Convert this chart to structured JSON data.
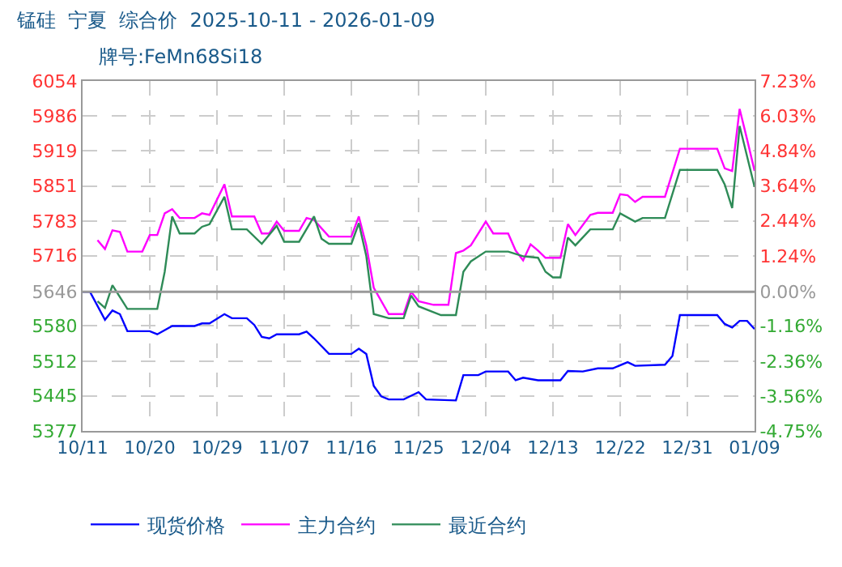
{
  "chart_data": {
    "type": "line",
    "title": "锰硅  宁夏  综合价  2025-10-11 - 2026-01-09",
    "subtitle": "牌号:FeMn68Si18",
    "series": [
      {
        "name": "现货价格",
        "color": "#0000ff",
        "x": [
          "2025-10-11",
          "2025-10-12",
          "2025-10-14",
          "2025-10-15",
          "2025-10-16",
          "2025-10-17",
          "2025-10-20",
          "2025-10-21",
          "2025-10-23",
          "2025-10-26",
          "2025-10-27",
          "2025-10-28",
          "2025-10-30",
          "2025-10-31",
          "2025-11-02",
          "2025-11-03",
          "2025-11-04",
          "2025-11-05",
          "2025-11-06",
          "2025-11-09",
          "2025-11-10",
          "2025-11-11",
          "2025-11-13",
          "2025-11-16",
          "2025-11-17",
          "2025-11-18",
          "2025-11-19",
          "2025-11-20",
          "2025-11-21",
          "2025-11-23",
          "2025-11-25",
          "2025-11-26",
          "2025-11-30",
          "2025-12-01",
          "2025-12-03",
          "2025-12-04",
          "2025-12-07",
          "2025-12-08",
          "2025-12-09",
          "2025-12-11",
          "2025-12-14",
          "2025-12-15",
          "2025-12-17",
          "2025-12-19",
          "2025-12-21",
          "2025-12-23",
          "2025-12-24",
          "2025-12-28",
          "2025-12-29",
          "2025-12-30",
          "2026-01-04",
          "2026-01-05",
          "2026-01-06",
          "2026-01-07",
          "2026-01-08",
          "2026-01-09"
        ],
        "values": [
          5646,
          5646,
          5592,
          5610,
          5603,
          5570,
          5570,
          5564,
          5580,
          5580,
          5585,
          5585,
          5603,
          5595,
          5595,
          5582,
          5559,
          5556,
          5564,
          5564,
          5569,
          5556,
          5526,
          5526,
          5536,
          5526,
          5464,
          5444,
          5438,
          5438,
          5452,
          5438,
          5436,
          5485,
          5485,
          5492,
          5492,
          5475,
          5480,
          5475,
          5475,
          5493,
          5492,
          5498,
          5498,
          5510,
          5503,
          5505,
          5522,
          5601,
          5601,
          5584,
          5577,
          5590,
          5590,
          5574
        ]
      },
      {
        "name": "主力合约",
        "color": "#ff00ff",
        "x": [
          "2025-10-13",
          "2025-10-14",
          "2025-10-15",
          "2025-10-16",
          "2025-10-17",
          "2025-10-19",
          "2025-10-20",
          "2025-10-21",
          "2025-10-22",
          "2025-10-23",
          "2025-10-24",
          "2025-10-26",
          "2025-10-27",
          "2025-10-28",
          "2025-10-30",
          "2025-10-31",
          "2025-11-03",
          "2025-11-04",
          "2025-11-05",
          "2025-11-06",
          "2025-11-07",
          "2025-11-09",
          "2025-11-10",
          "2025-11-11",
          "2025-11-13",
          "2025-11-16",
          "2025-11-17",
          "2025-11-18",
          "2025-11-19",
          "2025-11-21",
          "2025-11-23",
          "2025-11-24",
          "2025-11-25",
          "2025-11-27",
          "2025-11-29",
          "2025-11-30",
          "2025-12-01",
          "2025-12-02",
          "2025-12-04",
          "2025-12-05",
          "2025-12-07",
          "2025-12-08",
          "2025-12-09",
          "2025-12-10",
          "2025-12-11",
          "2025-12-12",
          "2025-12-14",
          "2025-12-15",
          "2025-12-16",
          "2025-12-18",
          "2025-12-19",
          "2025-12-21",
          "2025-12-22",
          "2025-12-23",
          "2025-12-24",
          "2025-12-25",
          "2025-12-28",
          "2025-12-30",
          "2026-01-04",
          "2026-01-05",
          "2026-01-06",
          "2026-01-07",
          "2026-01-08",
          "2026-01-09"
        ],
        "values": [
          5746,
          5729,
          5765,
          5762,
          5724,
          5724,
          5756,
          5756,
          5798,
          5806,
          5789,
          5789,
          5798,
          5795,
          5854,
          5792,
          5792,
          5759,
          5759,
          5782,
          5764,
          5764,
          5789,
          5785,
          5753,
          5753,
          5792,
          5736,
          5654,
          5603,
          5603,
          5646,
          5628,
          5621,
          5621,
          5721,
          5726,
          5736,
          5782,
          5759,
          5759,
          5726,
          5707,
          5738,
          5726,
          5712,
          5712,
          5777,
          5756,
          5795,
          5799,
          5799,
          5835,
          5833,
          5820,
          5830,
          5830,
          5923,
          5923,
          5885,
          5880,
          6000,
          5941,
          5880
        ]
      },
      {
        "name": "最近合约",
        "color": "#2e8b57",
        "x": [
          "2025-10-13",
          "2025-10-14",
          "2025-10-15",
          "2025-10-17",
          "2025-10-21",
          "2025-10-22",
          "2025-10-23",
          "2025-10-24",
          "2025-10-26",
          "2025-10-27",
          "2025-10-28",
          "2025-10-30",
          "2025-10-31",
          "2025-11-02",
          "2025-11-04",
          "2025-11-06",
          "2025-11-07",
          "2025-11-09",
          "2025-11-11",
          "2025-11-12",
          "2025-11-13",
          "2025-11-16",
          "2025-11-17",
          "2025-11-18",
          "2025-11-19",
          "2025-11-21",
          "2025-11-23",
          "2025-11-24",
          "2025-11-25",
          "2025-11-28",
          "2025-11-30",
          "2025-12-01",
          "2025-12-02",
          "2025-12-04",
          "2025-12-07",
          "2025-12-09",
          "2025-12-11",
          "2025-12-12",
          "2025-12-13",
          "2025-12-14",
          "2025-12-15",
          "2025-12-16",
          "2025-12-18",
          "2025-12-21",
          "2025-12-22",
          "2025-12-24",
          "2025-12-25",
          "2025-12-28",
          "2025-12-30",
          "2026-01-04",
          "2026-01-05",
          "2026-01-06",
          "2026-01-07",
          "2026-01-09"
        ],
        "values": [
          5628,
          5615,
          5659,
          5613,
          5613,
          5685,
          5792,
          5759,
          5759,
          5772,
          5777,
          5830,
          5767,
          5767,
          5739,
          5774,
          5743,
          5743,
          5792,
          5749,
          5739,
          5739,
          5779,
          5715,
          5603,
          5595,
          5595,
          5639,
          5618,
          5601,
          5601,
          5685,
          5705,
          5724,
          5724,
          5715,
          5712,
          5685,
          5674,
          5674,
          5751,
          5736,
          5767,
          5767,
          5798,
          5782,
          5789,
          5789,
          5882,
          5882,
          5854,
          5808,
          5967,
          5849
        ]
      }
    ],
    "xlim": [
      "2025-10-11",
      "2026-01-09"
    ],
    "xticks": [
      {
        "value": "2025-10-11",
        "label": "10/11"
      },
      {
        "value": "2025-10-20",
        "label": "10/20"
      },
      {
        "value": "2025-10-29",
        "label": "10/29"
      },
      {
        "value": "2025-11-07",
        "label": "11/07"
      },
      {
        "value": "2025-11-16",
        "label": "11/16"
      },
      {
        "value": "2025-11-25",
        "label": "11/25"
      },
      {
        "value": "2025-12-04",
        "label": "12/04"
      },
      {
        "value": "2025-12-13",
        "label": "12/13"
      },
      {
        "value": "2025-12-22",
        "label": "12/22"
      },
      {
        "value": "2025-12-31",
        "label": "12/31"
      },
      {
        "value": "2026-01-09",
        "label": "01/09"
      }
    ],
    "ylim": [
      5377,
      6054
    ],
    "yticks": [
      5377,
      5445,
      5512,
      5580,
      5646,
      5716,
      5783,
      5851,
      5919,
      5986,
      6054
    ],
    "y2lim": [
      -4.75,
      7.23
    ],
    "y2ticks": [
      {
        "value": -4.75,
        "label": "-4.75%"
      },
      {
        "value": -3.56,
        "label": "-3.56%"
      },
      {
        "value": -2.36,
        "label": "-2.36%"
      },
      {
        "value": -1.16,
        "label": "-1.16%"
      },
      {
        "value": 0,
        "label": "0.00%"
      },
      {
        "value": 1.24,
        "label": "1.24%"
      },
      {
        "value": 2.44,
        "label": "2.44%"
      },
      {
        "value": 3.64,
        "label": "3.64%"
      },
      {
        "value": 4.84,
        "label": "4.84%"
      },
      {
        "value": 6.03,
        "label": "6.03%"
      },
      {
        "value": 7.23,
        "label": "7.23%"
      }
    ],
    "ref_lines": [
      {
        "axis": "y",
        "value": 5646,
        "color": "#999999"
      }
    ],
    "grid": true,
    "legend": "bottom",
    "marker": "none",
    "line_style": "solid"
  }
}
